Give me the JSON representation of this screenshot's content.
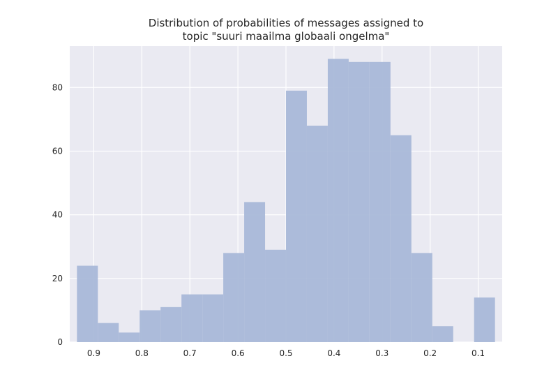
{
  "chart_data": {
    "type": "bar",
    "title_lines": [
      "Distribution of probabilities of messages assigned to",
      "topic \"suuri maailma globaali ongelma\""
    ],
    "xlabel": "",
    "ylabel": "",
    "x_axis_inverted": true,
    "xlim": [
      0.95,
      0.05
    ],
    "ylim": [
      0,
      93
    ],
    "x_ticks": [
      0.9,
      0.8,
      0.7,
      0.6,
      0.5,
      0.4,
      0.3,
      0.2,
      0.1
    ],
    "x_tick_labels": [
      "0.9",
      "0.8",
      "0.7",
      "0.6",
      "0.5",
      "0.4",
      "0.3",
      "0.2",
      "0.1"
    ],
    "y_ticks": [
      0,
      20,
      40,
      60,
      80
    ],
    "y_tick_labels": [
      "0",
      "20",
      "40",
      "60",
      "80"
    ],
    "grid": true,
    "bin_edges": [
      0.935,
      0.8915,
      0.848,
      0.8045,
      0.761,
      0.7175,
      0.674,
      0.6305,
      0.587,
      0.5435,
      0.5,
      0.4565,
      0.413,
      0.3695,
      0.326,
      0.2825,
      0.239,
      0.1955,
      0.152,
      0.1085,
      0.065
    ],
    "values": [
      24,
      6,
      3,
      10,
      11,
      15,
      15,
      28,
      44,
      29,
      79,
      68,
      89,
      88,
      88,
      65,
      28,
      5,
      0,
      14
    ],
    "colors": {
      "bar": "#a9b8d8",
      "plot_background": "#eaeaf2",
      "grid": "#ffffff",
      "text": "#262626"
    }
  }
}
